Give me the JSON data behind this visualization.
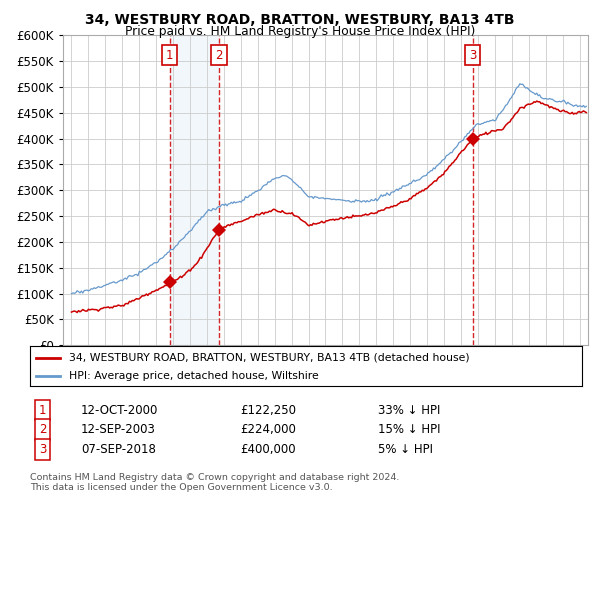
{
  "title": "34, WESTBURY ROAD, BRATTON, WESTBURY, BA13 4TB",
  "subtitle": "Price paid vs. HM Land Registry's House Price Index (HPI)",
  "legend_label_red": "34, WESTBURY ROAD, BRATTON, WESTBURY, BA13 4TB (detached house)",
  "legend_label_blue": "HPI: Average price, detached house, Wiltshire",
  "sales": [
    {
      "label": "1",
      "date": "12-OCT-2000",
      "price": 122250,
      "pct": "33% ↓ HPI"
    },
    {
      "label": "2",
      "date": "12-SEP-2003",
      "price": 224000,
      "pct": "15% ↓ HPI"
    },
    {
      "label": "3",
      "date": "07-SEP-2018",
      "price": 400000,
      "pct": "5% ↓ HPI"
    }
  ],
  "sale_dates_decimal": [
    2000.79,
    2003.71,
    2018.69
  ],
  "sale_prices": [
    122250,
    224000,
    400000
  ],
  "ylim": [
    0,
    600000
  ],
  "yticks": [
    0,
    50000,
    100000,
    150000,
    200000,
    250000,
    300000,
    350000,
    400000,
    450000,
    500000,
    550000,
    600000
  ],
  "xlim_start": 1994.5,
  "xlim_end": 2025.5,
  "footnote1": "Contains HM Land Registry data © Crown copyright and database right 2024.",
  "footnote2": "This data is licensed under the Open Government Licence v3.0.",
  "red_line_color": "#cc0000",
  "blue_line_color": "#6699cc",
  "shade_color": "#cce0f5",
  "grid_color": "#cccccc",
  "marker_color": "#cc0000",
  "vline_color": "#cc0000",
  "label_box_color": "#cc0000"
}
